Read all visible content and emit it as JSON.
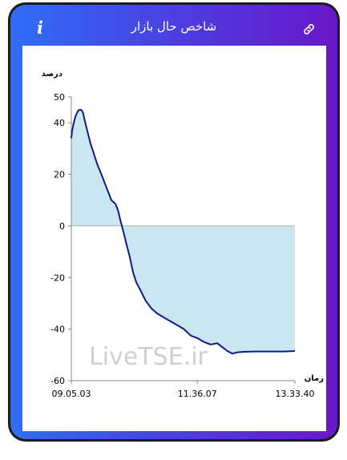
{
  "header": {
    "title": "شاخص حال بازار",
    "info_label": "i",
    "info_icon": "info-icon",
    "link_icon": "link-icon"
  },
  "chart_data": {
    "type": "area",
    "title": "",
    "ylabel": "درصد",
    "xlabel": "زمان",
    "ylim": [
      -60,
      50
    ],
    "yticks": [
      50,
      40,
      20,
      0,
      -20,
      -40,
      -60
    ],
    "ytick_labels": [
      "50",
      "40",
      "20",
      "0",
      "-20",
      "-40",
      "-60"
    ],
    "xlim": [
      "09.05.03",
      "13.33.40"
    ],
    "xtick_labels": [
      "09.05.03",
      "11.36.07",
      "13.33.40"
    ],
    "grid": false,
    "fill_color": "#c9e6f1",
    "line_color": "#0d1a8c",
    "watermark": "LiveTSE.ir",
    "series": [
      {
        "x": [
          "09.05",
          "09.06",
          "09.08",
          "09.10",
          "09.12",
          "09.14",
          "09.17",
          "09.19",
          "09.21",
          "09.24",
          "09.28",
          "09.32",
          "09.36",
          "09.41",
          "09.47",
          "09.53",
          "09.58",
          "10.01",
          "10.04",
          "10.08",
          "10.11",
          "10.15",
          "10.19",
          "10.23",
          "10.28",
          "10.34",
          "10.41",
          "10.48",
          "10.56",
          "11.04",
          "11.12",
          "11.20",
          "11.28",
          "11.36",
          "11.44",
          "11.52",
          "12.00",
          "12.06",
          "12.12",
          "12.18",
          "12.24",
          "12.32",
          "12.45",
          "13.00",
          "13.20",
          "13.33"
        ],
        "values": [
          34,
          37,
          40,
          42.5,
          44,
          45,
          45,
          44,
          41,
          37,
          32,
          28,
          24,
          20,
          15,
          10,
          8.5,
          6,
          2,
          -3,
          -7,
          -12,
          -18,
          -22,
          -25,
          -29,
          -32,
          -34,
          -35.5,
          -37,
          -38.5,
          -40,
          -42.5,
          -43.5,
          -45,
          -46,
          -45.5,
          -47,
          -48.5,
          -49.5,
          -49,
          -48.8,
          -48.7,
          -48.7,
          -48.7,
          -48.5
        ]
      }
    ]
  }
}
